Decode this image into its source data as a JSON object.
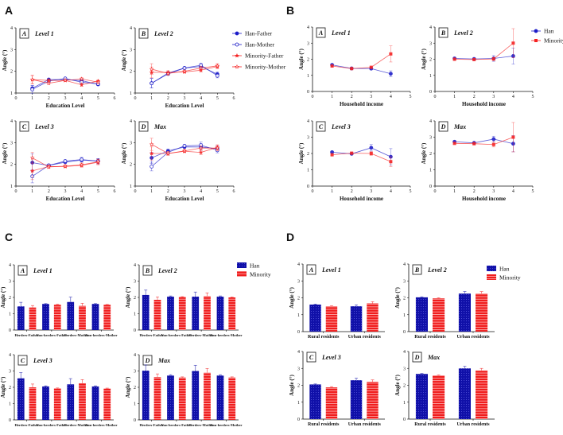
{
  "colors": {
    "han": "#1c1cc8",
    "minority": "#f52222",
    "han_bar": "#1010a8",
    "minority_bar": "#f01c1c"
  },
  "chart_data": [
    {
      "type": "line",
      "panel_label": "A",
      "xlabel": "Education Level",
      "ylabel": "Angle (°)",
      "xlim": [
        0,
        6
      ],
      "ylim": [
        1,
        4
      ],
      "xticks": [
        0,
        1,
        2,
        3,
        4,
        5,
        6
      ],
      "yticks": [
        1,
        2,
        3,
        4
      ],
      "x": [
        1,
        2,
        3,
        4,
        5
      ],
      "legend": [
        "Han-Father",
        "Han-Mother",
        "Minority-Father",
        "Minority-Mother"
      ],
      "legend_placement": "right",
      "subplots": [
        {
          "tag": "A",
          "title": "Level 1",
          "series": [
            {
              "name": "Han-Father",
              "values": [
                1.22,
                1.62,
                1.62,
                1.57,
                1.4
              ],
              "errors": [
                0.12,
                0.05,
                0.04,
                0.06,
                0.05
              ]
            },
            {
              "name": "Han-Mother",
              "values": [
                1.17,
                1.55,
                1.67,
                1.5,
                1.42
              ],
              "errors": [
                0.18,
                0.05,
                0.04,
                0.06,
                0.05
              ]
            },
            {
              "name": "Minority-Father",
              "values": [
                1.62,
                1.58,
                1.58,
                1.38,
                1.55
              ],
              "errors": [
                0.2,
                0.05,
                0.04,
                0.07,
                0.05
              ]
            },
            {
              "name": "Minority-Mother",
              "values": [
                1.62,
                1.45,
                1.58,
                1.65,
                1.5
              ],
              "errors": [
                0.18,
                0.05,
                0.04,
                0.07,
                0.05
              ]
            }
          ]
        },
        {
          "tag": "B",
          "title": "Level 2",
          "series": [
            {
              "name": "Han-Father",
              "values": [
                1.45,
                1.92,
                2.15,
                2.22,
                1.87
              ],
              "errors": [
                0.22,
                0.06,
                0.05,
                0.1,
                0.1
              ]
            },
            {
              "name": "Han-Mother",
              "values": [
                1.45,
                1.88,
                2.15,
                2.28,
                1.8
              ],
              "errors": [
                0.22,
                0.06,
                0.05,
                0.1,
                0.1
              ]
            },
            {
              "name": "Minority-Father",
              "values": [
                1.95,
                1.95,
                1.97,
                2.05,
                2.22
              ],
              "errors": [
                0.25,
                0.08,
                0.05,
                0.08,
                0.1
              ]
            },
            {
              "name": "Minority-Mother",
              "values": [
                2.1,
                1.9,
                2.0,
                2.15,
                2.25
              ],
              "errors": [
                0.25,
                0.08,
                0.05,
                0.08,
                0.1
              ]
            }
          ]
        },
        {
          "tag": "C",
          "title": "Level 3",
          "series": [
            {
              "name": "Han-Father",
              "values": [
                2.08,
                1.95,
                2.1,
                2.2,
                2.15
              ],
              "errors": [
                0.4,
                0.06,
                0.05,
                0.1,
                0.12
              ]
            },
            {
              "name": "Han-Mother",
              "values": [
                1.45,
                1.95,
                2.15,
                2.22,
                2.15
              ],
              "errors": [
                0.3,
                0.06,
                0.05,
                0.1,
                0.12
              ]
            },
            {
              "name": "Minority-Father",
              "values": [
                1.7,
                1.9,
                1.9,
                1.95,
                2.1
              ],
              "errors": [
                0.4,
                0.06,
                0.05,
                0.08,
                0.12
              ]
            },
            {
              "name": "Minority-Mother",
              "values": [
                2.3,
                1.88,
                1.92,
                1.98,
                2.12
              ],
              "errors": [
                0.25,
                0.06,
                0.05,
                0.08,
                0.12
              ]
            }
          ]
        },
        {
          "tag": "D",
          "title": "Max",
          "series": [
            {
              "name": "Han-Father",
              "values": [
                2.3,
                2.62,
                2.8,
                2.8,
                2.72
              ],
              "errors": [
                0.25,
                0.08,
                0.06,
                0.15,
                0.12
              ]
            },
            {
              "name": "Han-Mother",
              "values": [
                1.9,
                2.55,
                2.85,
                2.88,
                2.65
              ],
              "errors": [
                0.2,
                0.08,
                0.06,
                0.15,
                0.12
              ]
            },
            {
              "name": "Minority-Father",
              "values": [
                2.5,
                2.5,
                2.6,
                2.55,
                2.78
              ],
              "errors": [
                0.3,
                0.08,
                0.06,
                0.1,
                0.12
              ]
            },
            {
              "name": "Minority-Mother",
              "values": [
                2.92,
                2.5,
                2.62,
                2.75,
                2.75
              ],
              "errors": [
                0.28,
                0.08,
                0.06,
                0.1,
                0.12
              ]
            }
          ]
        }
      ]
    },
    {
      "type": "line",
      "panel_label": "B",
      "xlabel": "Household income",
      "ylabel": "Angle (°)",
      "xlim": [
        0,
        5
      ],
      "ylim": [
        0,
        4
      ],
      "xticks": [
        0,
        1,
        2,
        3,
        4,
        5
      ],
      "yticks": [
        0,
        1,
        2,
        3,
        4
      ],
      "x": [
        1,
        2,
        3,
        4
      ],
      "legend": [
        "Han",
        "Minority"
      ],
      "legend_placement": "right",
      "subplots": [
        {
          "tag": "A",
          "title": "Level 1",
          "series": [
            {
              "name": "Han",
              "values": [
                1.65,
                1.43,
                1.42,
                1.1
              ],
              "errors": [
                0.05,
                0.04,
                0.06,
                0.18
              ]
            },
            {
              "name": "Minority",
              "values": [
                1.58,
                1.42,
                1.5,
                2.33
              ],
              "errors": [
                0.05,
                0.04,
                0.06,
                0.5
              ]
            }
          ]
        },
        {
          "tag": "B",
          "title": "Level 2",
          "series": [
            {
              "name": "Han",
              "values": [
                2.05,
                2.02,
                2.05,
                2.2
              ],
              "errors": [
                0.05,
                0.04,
                0.18,
                0.5
              ]
            },
            {
              "name": "Minority",
              "values": [
                2.0,
                1.98,
                2.02,
                3.0
              ],
              "errors": [
                0.05,
                0.04,
                0.1,
                0.9
              ]
            }
          ]
        },
        {
          "tag": "C",
          "title": "Level 3",
          "series": [
            {
              "name": "Han",
              "values": [
                2.08,
                1.98,
                2.35,
                1.8
              ],
              "errors": [
                0.05,
                0.05,
                0.2,
                0.5
              ]
            },
            {
              "name": "Minority",
              "values": [
                1.92,
                2.02,
                2.0,
                1.5
              ],
              "errors": [
                0.05,
                0.05,
                0.12,
                0.3
              ]
            }
          ]
        },
        {
          "tag": "D",
          "title": "Max",
          "series": [
            {
              "name": "Han",
              "values": [
                2.72,
                2.65,
                2.88,
                2.6
              ],
              "errors": [
                0.05,
                0.05,
                0.18,
                0.5
              ]
            },
            {
              "name": "Minority",
              "values": [
                2.62,
                2.6,
                2.55,
                3.0
              ],
              "errors": [
                0.05,
                0.05,
                0.15,
                0.9
              ]
            }
          ]
        }
      ]
    },
    {
      "type": "bar",
      "panel_label": "C",
      "ylabel": "Angle (°)",
      "ylim": [
        0,
        4
      ],
      "yticks": [
        0,
        1,
        2,
        3,
        4
      ],
      "categories": [
        "Herders-Father",
        "Non-herders-Father",
        "Herders-Mother",
        "Non-herders-Mother"
      ],
      "legend": [
        "Han",
        "Minority"
      ],
      "legend_placement": "top-right",
      "subplots": [
        {
          "tag": "A",
          "title": "Level 1",
          "series": [
            {
              "name": "Han",
              "values": [
                1.45,
                1.6,
                1.72,
                1.6
              ],
              "errors": [
                0.25,
                0.02,
                0.3,
                0.02
              ]
            },
            {
              "name": "Minority",
              "values": [
                1.38,
                1.55,
                1.48,
                1.55
              ],
              "errors": [
                0.12,
                0.03,
                0.16,
                0.02
              ]
            }
          ]
        },
        {
          "tag": "B",
          "title": "Level 2",
          "series": [
            {
              "name": "Han",
              "values": [
                2.15,
                2.05,
                2.05,
                2.05
              ],
              "errors": [
                0.3,
                0.04,
                0.28,
                0.04
              ]
            },
            {
              "name": "Minority",
              "values": [
                1.85,
                2.02,
                2.08,
                2.0
              ],
              "errors": [
                0.18,
                0.03,
                0.2,
                0.03
              ]
            }
          ]
        },
        {
          "tag": "C",
          "title": "Level 3",
          "series": [
            {
              "name": "Han",
              "values": [
                2.55,
                2.05,
                2.18,
                2.05
              ],
              "errors": [
                0.35,
                0.04,
                0.35,
                0.04
              ]
            },
            {
              "name": "Minority",
              "values": [
                2.0,
                1.93,
                2.25,
                1.92
              ],
              "errors": [
                0.2,
                0.03,
                0.22,
                0.03
              ]
            }
          ]
        },
        {
          "tag": "D",
          "title": "Max",
          "series": [
            {
              "name": "Han",
              "values": [
                3.02,
                2.72,
                3.0,
                2.72
              ],
              "errors": [
                0.35,
                0.05,
                0.35,
                0.05
              ]
            },
            {
              "name": "Minority",
              "values": [
                2.62,
                2.6,
                2.9,
                2.6
              ],
              "errors": [
                0.2,
                0.04,
                0.25,
                0.04
              ]
            }
          ]
        }
      ]
    },
    {
      "type": "bar",
      "panel_label": "D",
      "ylabel": "Angle (°)",
      "ylim": [
        0,
        4
      ],
      "yticks": [
        0,
        1,
        2,
        3,
        4
      ],
      "categories": [
        "Rural residents",
        "Urban residents"
      ],
      "legend": [
        "Han",
        "Minority"
      ],
      "legend_placement": "top-right",
      "subplots": [
        {
          "tag": "A",
          "title": "Level 1",
          "series": [
            {
              "name": "Han",
              "values": [
                1.6,
                1.5
              ],
              "errors": [
                0.03,
                0.08
              ]
            },
            {
              "name": "Minority",
              "values": [
                1.5,
                1.67
              ],
              "errors": [
                0.03,
                0.1
              ]
            }
          ]
        },
        {
          "tag": "B",
          "title": "Level 2",
          "series": [
            {
              "name": "Han",
              "values": [
                2.03,
                2.25
              ],
              "errors": [
                0.03,
                0.12
              ]
            },
            {
              "name": "Minority",
              "values": [
                1.97,
                2.25
              ],
              "errors": [
                0.03,
                0.12
              ]
            }
          ]
        },
        {
          "tag": "C",
          "title": "Level 3",
          "series": [
            {
              "name": "Han",
              "values": [
                2.05,
                2.3
              ],
              "errors": [
                0.03,
                0.12
              ]
            },
            {
              "name": "Minority",
              "values": [
                1.88,
                2.2
              ],
              "errors": [
                0.04,
                0.12
              ]
            }
          ]
        },
        {
          "tag": "D",
          "title": "Max",
          "series": [
            {
              "name": "Han",
              "values": [
                2.67,
                3.0
              ],
              "errors": [
                0.03,
                0.12
              ]
            },
            {
              "name": "Minority",
              "values": [
                2.58,
                2.88
              ],
              "errors": [
                0.03,
                0.12
              ]
            }
          ]
        }
      ]
    }
  ]
}
